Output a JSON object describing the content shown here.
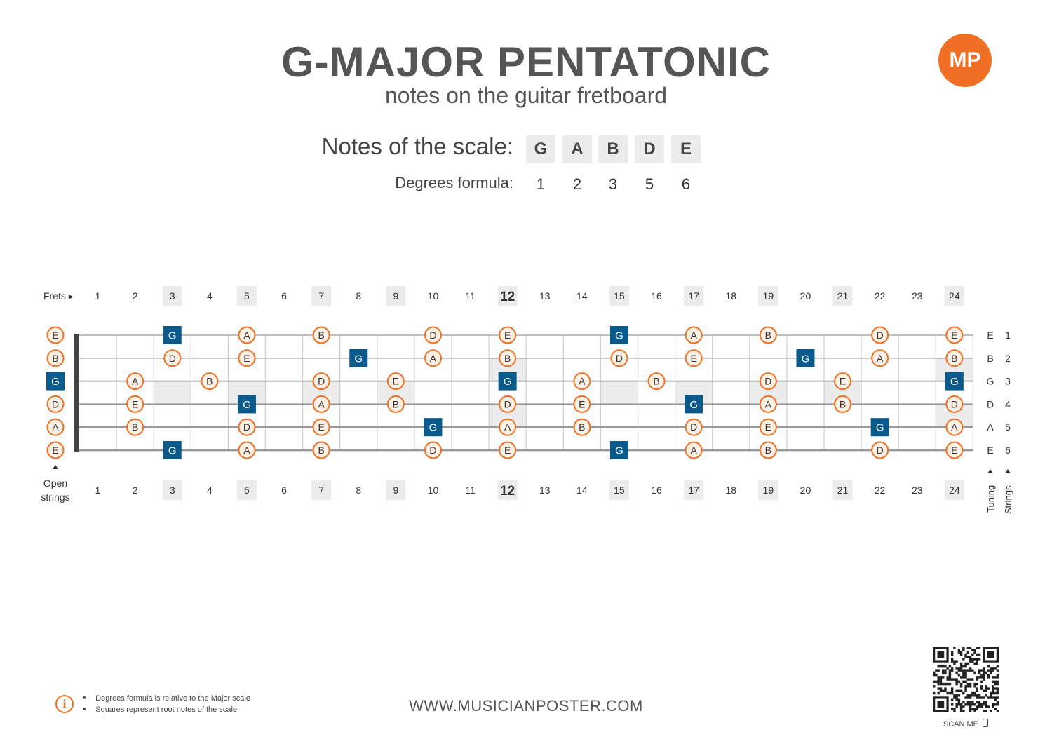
{
  "title": "G-MAJOR PENTATONIC",
  "subtitle": "notes on the guitar fretboard",
  "logo_text": "MP",
  "scale": {
    "label": "Notes of the scale:",
    "notes": [
      "G",
      "A",
      "B",
      "D",
      "E"
    ],
    "degrees_label": "Degrees formula:",
    "degrees": [
      "1",
      "2",
      "3",
      "5",
      "6"
    ]
  },
  "fretboard": {
    "frets_label": "Frets ▸",
    "open_label": [
      "Open",
      "strings"
    ],
    "fret_numbers": [
      "1",
      "2",
      "3",
      "4",
      "5",
      "6",
      "7",
      "8",
      "9",
      "10",
      "11",
      "12",
      "13",
      "14",
      "15",
      "16",
      "17",
      "18",
      "19",
      "20",
      "21",
      "22",
      "23",
      "24"
    ],
    "highlight_frets": [
      3,
      5,
      7,
      9,
      12,
      15,
      17,
      19,
      21,
      24
    ],
    "bold_frets": [
      12
    ],
    "tuning": [
      "E",
      "B",
      "G",
      "D",
      "A",
      "E"
    ],
    "string_numbers": [
      "1",
      "2",
      "3",
      "4",
      "5",
      "6"
    ],
    "tuning_label": "Tuning",
    "strings_label": "Strings",
    "root_note": "G",
    "scale_notes": [
      "G",
      "A",
      "B",
      "D",
      "E"
    ],
    "inlay_single": [
      3,
      5,
      7,
      9,
      15,
      17,
      19,
      21
    ],
    "inlay_double": [
      12,
      24
    ],
    "colors": {
      "accent": "#ef7024",
      "root": "#0a5a8c",
      "note_fill": "#fdf1e6",
      "inlay": "#ececec",
      "string": "#999999",
      "nut": "#444444"
    }
  },
  "footer": {
    "url": "WWW.MUSICIANPOSTER.COM",
    "notes": [
      "Degrees formula is relative to the Major scale",
      "Squares represent root notes of the scale"
    ],
    "scan_label": "SCAN ME"
  }
}
